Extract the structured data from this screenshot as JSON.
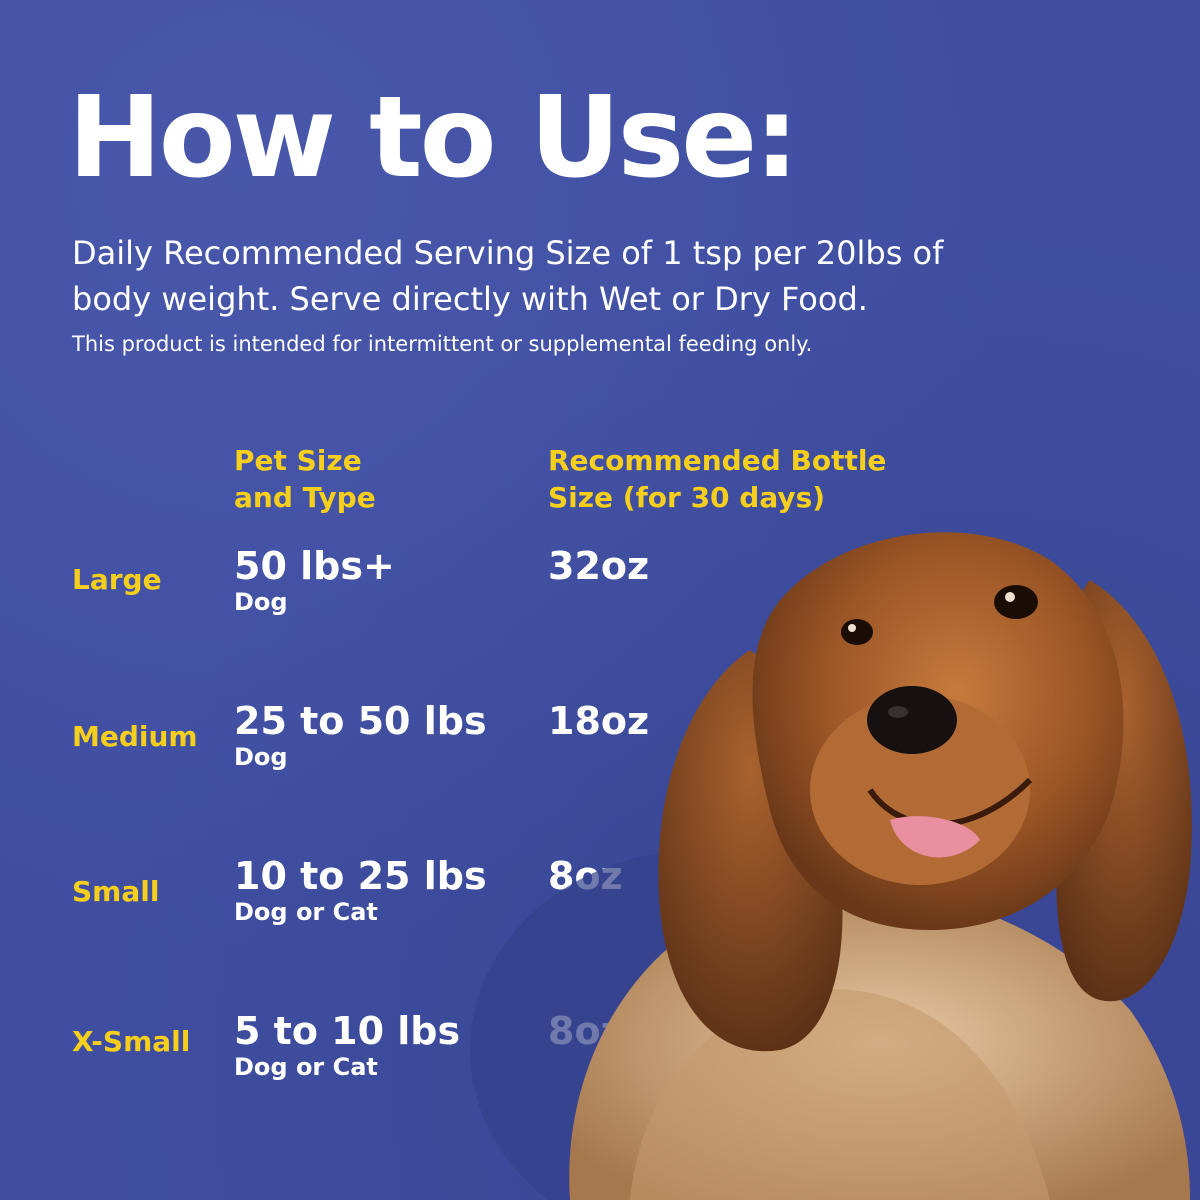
{
  "header": {
    "title": "How to Use:",
    "subtitle": "Daily Recommended Serving Size of 1 tsp per 20lbs of body weight. Serve directly with Wet or Dry Food.",
    "note": "This product is intended for intermittent or supplemental feeding only."
  },
  "table": {
    "col_pet_size_line1": "Pet Size",
    "col_pet_size_line2": "and Type",
    "col_bottle_line1": "Recommended Bottle",
    "col_bottle_line2": "Size (for 30 days)",
    "rows": [
      {
        "size": "Large",
        "weight": "50 lbs+",
        "type": "Dog",
        "bottle": "32oz"
      },
      {
        "size": "Medium",
        "weight": "25 to 50 lbs",
        "type": "Dog",
        "bottle": "18oz"
      },
      {
        "size": "Small",
        "weight": "10 to 25 lbs",
        "type": "Dog or Cat",
        "bottle": "8oz"
      },
      {
        "size": "X-Small",
        "weight": "5 to 10 lbs",
        "type": "Dog or Cat",
        "bottle": "8oz"
      }
    ]
  },
  "colors": {
    "background": "#3f4ea0",
    "accent": "#f5cf1b",
    "text": "#ffffff"
  }
}
